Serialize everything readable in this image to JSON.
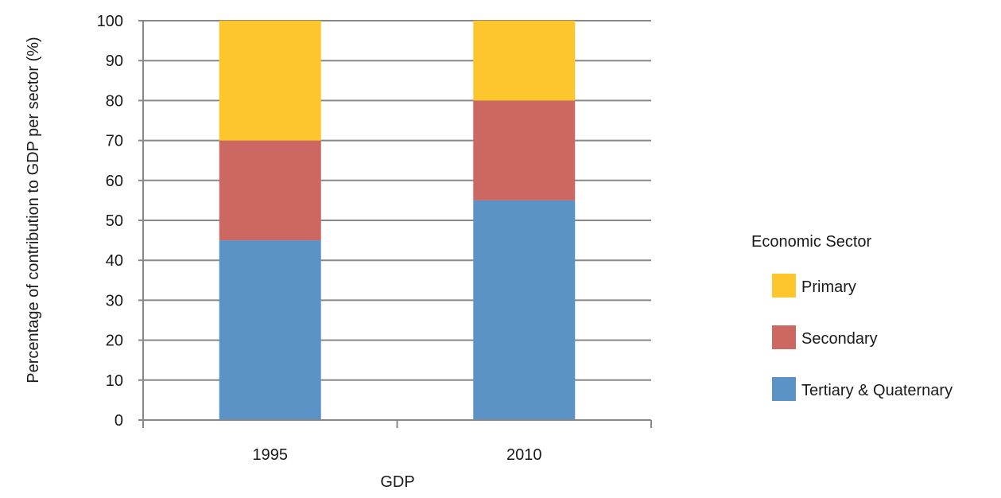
{
  "chart_data": {
    "type": "bar",
    "stacked": true,
    "categories": [
      "1995",
      "2010"
    ],
    "series": [
      {
        "name": "Tertiary & Quaternary",
        "values": [
          45,
          55
        ],
        "color": "#5b93c7"
      },
      {
        "name": "Secondary",
        "values": [
          25,
          25
        ],
        "color": "#cc6861"
      },
      {
        "name": "Primary",
        "values": [
          30,
          20
        ],
        "color": "#fdc62c"
      }
    ],
    "xlabel": "GDP",
    "ylabel": "Percentage of contribution to GDP per sector (%)",
    "ylim": [
      0,
      100
    ],
    "yticks": [
      0,
      10,
      20,
      30,
      40,
      50,
      60,
      70,
      80,
      90,
      100
    ],
    "grid": true,
    "legend": {
      "title": "Economic Sector",
      "placement": "right",
      "order": [
        "Primary",
        "Secondary",
        "Tertiary & Quaternary"
      ]
    }
  }
}
